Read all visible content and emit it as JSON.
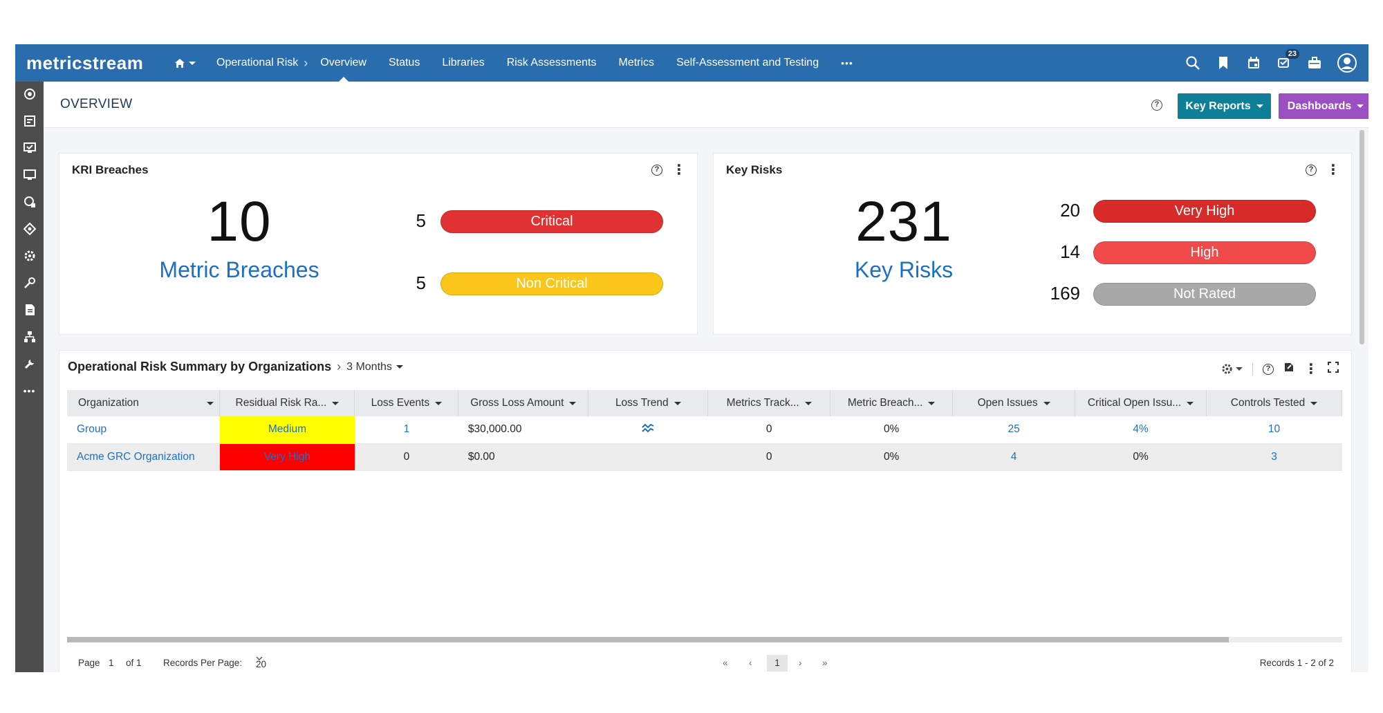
{
  "app": {
    "logo": "metricstream"
  },
  "nav": {
    "items": [
      {
        "label": "Operational Risk",
        "active": false
      },
      {
        "label": "Overview",
        "active": true
      },
      {
        "label": "Status",
        "active": false
      },
      {
        "label": "Libraries",
        "active": false
      },
      {
        "label": "Risk Assessments",
        "active": false
      },
      {
        "label": "Metrics",
        "active": false
      },
      {
        "label": "Self-Assessment and Testing",
        "active": false
      }
    ],
    "more": "•••",
    "notification_count": "23"
  },
  "header": {
    "title": "OVERVIEW",
    "help": "?",
    "key_reports": "Key Reports",
    "dashboards": "Dashboards",
    "key_reports_color": "#0e7f96",
    "dashboards_color": "#9b4fc2"
  },
  "kri": {
    "title": "KRI Breaches",
    "total": "10",
    "total_label": "Metric Breaches",
    "rows": [
      {
        "count": "5",
        "label": "Critical",
        "color": "#e03232"
      },
      {
        "count": "5",
        "label": "Non Critical",
        "color": "#fbc61a"
      }
    ]
  },
  "key_risks": {
    "title": "Key Risks",
    "total": "231",
    "total_label": "Key Risks",
    "rows": [
      {
        "count": "20",
        "label": "Very High",
        "color": "#d92a2a"
      },
      {
        "count": "14",
        "label": "High",
        "color": "#f04a4a"
      },
      {
        "count": "169",
        "label": "Not Rated",
        "color": "#a8a8a8"
      }
    ]
  },
  "summary": {
    "title": "Operational Risk Summary by Organizations",
    "period": "3 Months",
    "columns": [
      "Organization",
      "Residual Risk Ra...",
      "Loss Events",
      "Gross Loss Amount",
      "Loss Trend",
      "Metrics Track...",
      "Metric Breach...",
      "Open Issues",
      "Critical Open Issu...",
      "Controls Tested"
    ],
    "rows": [
      {
        "organization": "Group",
        "residual_risk": "Medium",
        "risk_color": "#ffff00",
        "loss_events": "1",
        "gross_loss": "$30,000.00",
        "loss_trend": "trend-icon",
        "metrics_track": "0",
        "metric_breach": "0%",
        "open_issues": "25",
        "critical_open": "4%",
        "controls_tested": "10"
      },
      {
        "organization": "Acme GRC Organization",
        "residual_risk": "Very High",
        "risk_color": "#ff0000",
        "loss_events": "0",
        "gross_loss": "$0.00",
        "loss_trend": "",
        "metrics_track": "0",
        "metric_breach": "0%",
        "open_issues": "4",
        "critical_open": "0%",
        "controls_tested": "3"
      }
    ],
    "pager": {
      "page_label": "Page",
      "page": "1",
      "of": "of 1",
      "records_per_page_label": "Records Per Page:",
      "records_per_page": "20",
      "current": "1",
      "records": "Records 1 - 2 of 2"
    }
  }
}
